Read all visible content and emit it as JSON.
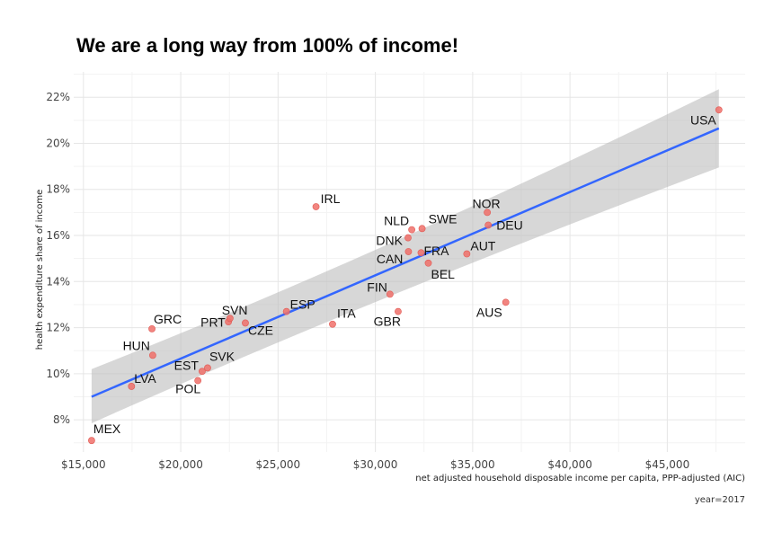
{
  "chart_data": {
    "type": "scatter",
    "title": "We are a long way from 100% of income!",
    "xlabel": "net adjusted household disposable income per capita, PPP-adjusted (AIC)",
    "ylabel": "health expenditure share of income",
    "caption": "year=2017",
    "xlim": [
      14500,
      49000
    ],
    "ylim": [
      6.6,
      23.1
    ],
    "x_ticks": [
      15000,
      20000,
      25000,
      30000,
      35000,
      40000,
      45000
    ],
    "x_tick_labels": [
      "$15,000",
      "$20,000",
      "$25,000",
      "$30,000",
      "$35,000",
      "$40,000",
      "$45,000"
    ],
    "y_ticks": [
      8,
      10,
      12,
      14,
      16,
      18,
      20,
      22
    ],
    "y_tick_labels": [
      "8%",
      "10%",
      "12%",
      "14%",
      "16%",
      "18%",
      "20%",
      "22%"
    ],
    "grid": true,
    "points": [
      {
        "label": "MEX",
        "x": 15420,
        "y": 7.1
      },
      {
        "label": "LVA",
        "x": 17470,
        "y": 9.45
      },
      {
        "label": "GRC",
        "x": 18520,
        "y": 11.95
      },
      {
        "label": "HUN",
        "x": 18560,
        "y": 10.8
      },
      {
        "label": "POL",
        "x": 20880,
        "y": 9.7
      },
      {
        "label": "EST",
        "x": 21100,
        "y": 10.1
      },
      {
        "label": "SVK",
        "x": 21380,
        "y": 10.25
      },
      {
        "label": "SVN",
        "x": 22450,
        "y": 12.25
      },
      {
        "label": "PRT",
        "x": 22530,
        "y": 12.4
      },
      {
        "label": "CZE",
        "x": 23320,
        "y": 12.2
      },
      {
        "label": "ESP",
        "x": 25430,
        "y": 12.7
      },
      {
        "label": "IRL",
        "x": 26950,
        "y": 17.25
      },
      {
        "label": "ITA",
        "x": 27800,
        "y": 12.15
      },
      {
        "label": "FIN",
        "x": 30750,
        "y": 13.45
      },
      {
        "label": "GBR",
        "x": 31170,
        "y": 12.7
      },
      {
        "label": "DNK",
        "x": 31680,
        "y": 15.9
      },
      {
        "label": "CAN",
        "x": 31700,
        "y": 15.3
      },
      {
        "label": "NLD",
        "x": 31870,
        "y": 16.25
      },
      {
        "label": "FRA",
        "x": 32350,
        "y": 15.25
      },
      {
        "label": "SWE",
        "x": 32400,
        "y": 16.3
      },
      {
        "label": "BEL",
        "x": 32720,
        "y": 14.8
      },
      {
        "label": "AUT",
        "x": 34700,
        "y": 15.2
      },
      {
        "label": "NOR",
        "x": 35750,
        "y": 17.0
      },
      {
        "label": "DEU",
        "x": 35800,
        "y": 16.45
      },
      {
        "label": "AUS",
        "x": 36700,
        "y": 13.1
      },
      {
        "label": "USA",
        "x": 47650,
        "y": 21.45
      }
    ],
    "trend": {
      "type": "linear",
      "color": "#3366ff",
      "x": [
        15420,
        47650
      ],
      "y": [
        9.0,
        20.65
      ],
      "band_lower": [
        7.85,
        18.95
      ],
      "band_upper": [
        10.2,
        22.35
      ],
      "band_mid_x": 30000,
      "band_mid_y": [
        13.7,
        14.7
      ]
    }
  }
}
